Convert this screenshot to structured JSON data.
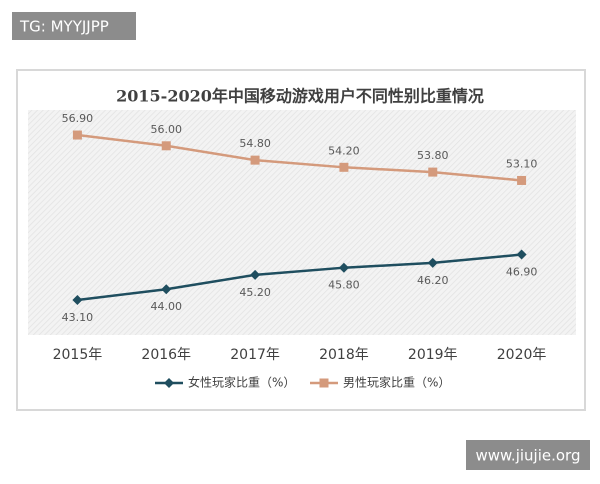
{
  "chart_data": {
    "type": "line",
    "title": "2015-2020年中国移动游戏用户不同性别比重情况",
    "categories": [
      "2015年",
      "2016年",
      "2017年",
      "2018年",
      "2019年",
      "2020年"
    ],
    "series": [
      {
        "name": "女性玩家比重（%）",
        "color": "#1f4e5f",
        "marker": "diamond",
        "values": [
          43.1,
          44.0,
          45.2,
          45.8,
          46.2,
          46.9
        ],
        "value_labels": [
          "43.10",
          "44.00",
          "45.20",
          "45.80",
          "46.20",
          "46.90"
        ],
        "label_position": "below"
      },
      {
        "name": "男性玩家比重（%）",
        "color": "#d49a7c",
        "marker": "square",
        "values": [
          56.9,
          56.0,
          54.8,
          54.2,
          53.8,
          53.1
        ],
        "value_labels": [
          "56.90",
          "56.00",
          "54.80",
          "54.20",
          "53.80",
          "53.10"
        ],
        "label_position": "above"
      }
    ],
    "ylim": [
      40,
      60
    ],
    "legend": "bottom"
  },
  "watermarks": [
    "TG: MYYJJPP",
    "www.jiujie.org"
  ]
}
